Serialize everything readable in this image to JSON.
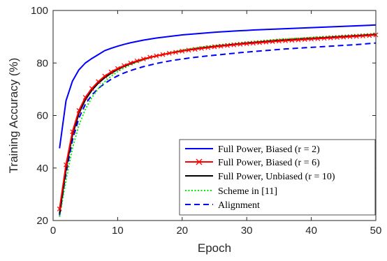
{
  "chart_data": {
    "type": "line",
    "title": "",
    "xlabel": "Epoch",
    "ylabel": "Training Accuracy (%)",
    "xlim": [
      0,
      50
    ],
    "ylim": [
      20,
      100
    ],
    "xticks": [
      0,
      10,
      20,
      30,
      40,
      50
    ],
    "yticks": [
      20,
      40,
      60,
      80,
      100
    ],
    "grid": false,
    "legend_position": "bottom-right",
    "x": [
      1,
      2,
      3,
      4,
      5,
      6,
      7,
      8,
      9,
      10,
      11,
      12,
      13,
      14,
      15,
      16,
      17,
      18,
      19,
      20,
      21,
      22,
      23,
      24,
      25,
      26,
      27,
      28,
      29,
      30,
      31,
      32,
      33,
      34,
      35,
      36,
      37,
      38,
      39,
      40,
      41,
      42,
      43,
      44,
      45,
      46,
      47,
      48,
      49,
      50
    ],
    "series": [
      {
        "name": "Full Power, Biased (r = 2)",
        "color": "#0000ff",
        "line_style": "solid",
        "marker": "none",
        "values": [
          47.5,
          65.6,
          73.1,
          77.4,
          80.0,
          81.7,
          83.2,
          84.7,
          85.6,
          86.4,
          87.1,
          87.7,
          88.2,
          88.7,
          89.1,
          89.5,
          89.8,
          90.1,
          90.4,
          90.7,
          90.9,
          91.1,
          91.3,
          91.5,
          91.7,
          91.85,
          92.0,
          92.15,
          92.3,
          92.4,
          92.55,
          92.65,
          92.75,
          92.85,
          92.95,
          93.05,
          93.15,
          93.25,
          93.35,
          93.45,
          93.55,
          93.65,
          93.75,
          93.85,
          93.95,
          94.05,
          94.15,
          94.25,
          94.35,
          94.5
        ]
      },
      {
        "name": "Full Power, Biased (r = 6)",
        "color": "#ff0000",
        "line_style": "solid",
        "marker": "x",
        "values": [
          24.4,
          41.2,
          53.8,
          61.9,
          66.9,
          70.3,
          72.9,
          75.0,
          76.6,
          77.9,
          79.0,
          80.0,
          80.8,
          81.5,
          82.2,
          82.7,
          83.2,
          83.7,
          84.1,
          84.5,
          84.9,
          85.2,
          85.55,
          85.85,
          86.15,
          86.4,
          86.65,
          86.9,
          87.15,
          87.35,
          87.55,
          87.75,
          87.95,
          88.15,
          88.35,
          88.5,
          88.65,
          88.8,
          88.95,
          89.1,
          89.25,
          89.4,
          89.55,
          89.7,
          89.85,
          90.0,
          90.15,
          90.3,
          90.45,
          90.7
        ]
      },
      {
        "name": "Full Power, Unbiased (r = 10)",
        "color": "#000000",
        "line_style": "solid",
        "marker": "none",
        "values": [
          22.6,
          39.6,
          52.5,
          60.8,
          66.0,
          69.6,
          72.3,
          74.4,
          76.1,
          77.5,
          78.7,
          79.7,
          80.6,
          81.4,
          82.1,
          82.7,
          83.2,
          83.7,
          84.2,
          84.6,
          85.0,
          85.35,
          85.7,
          86.0,
          86.3,
          86.6,
          86.85,
          87.1,
          87.35,
          87.6,
          87.8,
          88.0,
          88.2,
          88.4,
          88.6,
          88.75,
          88.9,
          89.05,
          89.2,
          89.35,
          89.5,
          89.65,
          89.8,
          89.95,
          90.1,
          90.25,
          90.4,
          90.55,
          90.7,
          90.9
        ]
      },
      {
        "name": "Scheme in [11]",
        "color": "#00ee00",
        "line_style": "dotted",
        "marker": "none",
        "values": [
          21.4,
          35.4,
          47.6,
          56.3,
          62.4,
          66.8,
          70.2,
          72.9,
          75.0,
          76.7,
          78.1,
          79.3,
          80.3,
          81.2,
          82.0,
          82.7,
          83.3,
          83.9,
          84.4,
          84.9,
          85.3,
          85.7,
          86.05,
          86.4,
          86.7,
          87.0,
          87.25,
          87.5,
          87.75,
          88.0,
          88.2,
          88.4,
          88.6,
          88.8,
          89.0,
          89.15,
          89.3,
          89.45,
          89.6,
          89.75,
          89.9,
          90.05,
          90.2,
          90.35,
          90.5,
          90.65,
          90.8,
          90.95,
          91.1,
          91.3
        ]
      },
      {
        "name": "Alignment",
        "color": "#0000ff",
        "line_style": "dashed",
        "marker": "none",
        "values": [
          22.0,
          38.0,
          50.6,
          59.0,
          64.3,
          67.8,
          70.3,
          72.2,
          73.8,
          75.1,
          76.2,
          77.1,
          77.9,
          78.6,
          79.2,
          79.8,
          80.3,
          80.75,
          81.15,
          81.5,
          81.85,
          82.15,
          82.45,
          82.7,
          82.95,
          83.2,
          83.45,
          83.7,
          83.95,
          84.15,
          84.35,
          84.55,
          84.75,
          84.95,
          85.15,
          85.35,
          85.5,
          85.65,
          85.8,
          85.95,
          86.1,
          86.25,
          86.4,
          86.55,
          86.7,
          86.85,
          87.0,
          87.2,
          87.4,
          87.6
        ]
      }
    ]
  },
  "legend": {
    "entries": [
      {
        "label": "Full Power, Biased",
        "expr": "(r = 2)"
      },
      {
        "label": "Full Power, Biased",
        "expr": "(r = 6)"
      },
      {
        "label": "Full Power, Unbiased",
        "expr": "(r = 10)"
      },
      {
        "label": "Scheme in [11]",
        "expr": ""
      },
      {
        "label": "Alignment",
        "expr": ""
      }
    ]
  }
}
